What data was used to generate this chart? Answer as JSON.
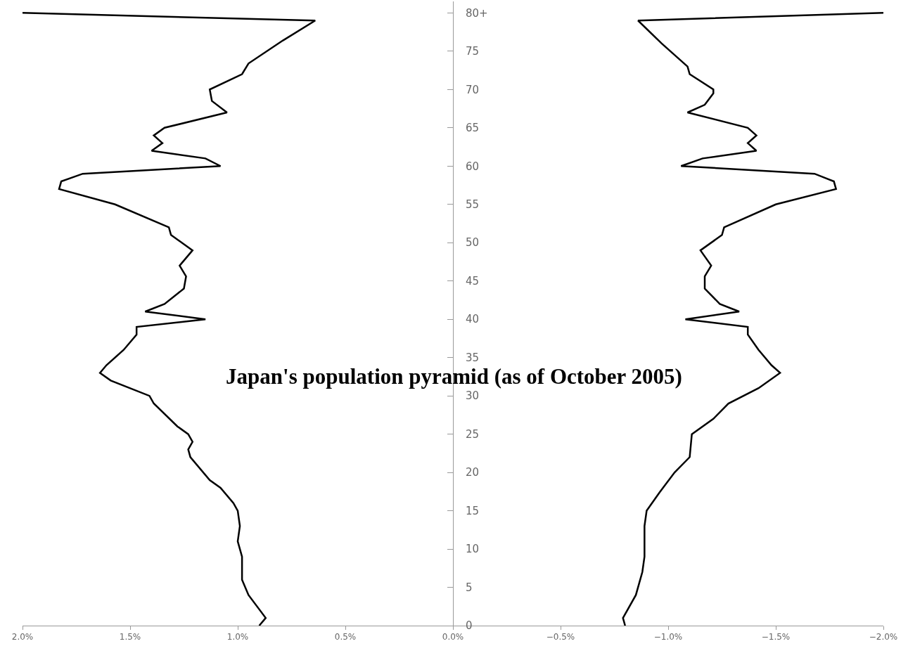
{
  "chart_data": {
    "type": "line",
    "orientation": "horizontal",
    "title": "Japan's population pyramid (as of October 2005)",
    "marker": "none",
    "series": [
      {
        "color": "#000000",
        "x": [
          0,
          1,
          4,
          6,
          9,
          11,
          13,
          15,
          16,
          18,
          19,
          22,
          23,
          24,
          25,
          26,
          29,
          30,
          32,
          33,
          34,
          36,
          38,
          39,
          40,
          41,
          42,
          44,
          45.6,
          47,
          49,
          51,
          52,
          55,
          57,
          58,
          59,
          60,
          61,
          62,
          63,
          64,
          65,
          67,
          68.5,
          70,
          72,
          73.4,
          76.4,
          79,
          80
        ],
        "values": [
          0.9,
          0.87,
          0.95,
          0.98,
          0.98,
          1.0,
          0.99,
          1.0,
          1.02,
          1.08,
          1.13,
          1.22,
          1.23,
          1.21,
          1.23,
          1.28,
          1.39,
          1.41,
          1.59,
          1.64,
          1.61,
          1.53,
          1.47,
          1.47,
          1.15,
          1.43,
          1.34,
          1.25,
          1.24,
          1.27,
          1.21,
          1.31,
          1.32,
          1.57,
          1.83,
          1.82,
          1.72,
          1.08,
          1.15,
          1.4,
          1.35,
          1.39,
          1.34,
          1.05,
          1.12,
          1.13,
          0.98,
          0.95,
          0.79,
          0.64,
          2.0
        ]
      },
      {
        "color": "#000000",
        "x": [
          0,
          1,
          4,
          7,
          9,
          13,
          15,
          17.4,
          20,
          22,
          25,
          27,
          29,
          31,
          33,
          34,
          36,
          38,
          39,
          40,
          41,
          42,
          44,
          45.6,
          47,
          49,
          51,
          52,
          55,
          57,
          58,
          59,
          60,
          61,
          62,
          63,
          64,
          65,
          67,
          68,
          69.5,
          70,
          72,
          73,
          76,
          79,
          80
        ],
        "values": [
          -0.8,
          -0.79,
          -0.85,
          -0.88,
          -0.89,
          -0.89,
          -0.9,
          -0.96,
          -1.03,
          -1.1,
          -1.11,
          -1.21,
          -1.28,
          -1.42,
          -1.52,
          -1.48,
          -1.42,
          -1.37,
          -1.37,
          -1.08,
          -1.33,
          -1.24,
          -1.17,
          -1.17,
          -1.2,
          -1.15,
          -1.25,
          -1.26,
          -1.5,
          -1.78,
          -1.77,
          -1.68,
          -1.06,
          -1.16,
          -1.41,
          -1.37,
          -1.41,
          -1.37,
          -1.09,
          -1.17,
          -1.21,
          -1.21,
          -1.1,
          -1.09,
          -0.97,
          -0.86,
          -2.0
        ]
      }
    ],
    "xlim": [
      2.0,
      -2.0
    ],
    "xticks": [
      {
        "value": 2.0,
        "label": "2.0%"
      },
      {
        "value": 1.5,
        "label": "1.5%"
      },
      {
        "value": 1.0,
        "label": "1.0%"
      },
      {
        "value": 0.5,
        "label": "0.5%"
      },
      {
        "value": 0,
        "label": "0.0%"
      },
      {
        "value": -0.5,
        "label": "−0.5%"
      },
      {
        "value": -1.0,
        "label": "−1.0%"
      },
      {
        "value": -1.5,
        "label": "−1.5%"
      },
      {
        "value": -2.0,
        "label": "−2.0%"
      }
    ],
    "ylim": [
      0,
      81.5
    ],
    "yticks": [
      0,
      5,
      10,
      15,
      20,
      25,
      30,
      35,
      40,
      45,
      50,
      55,
      60,
      65,
      70,
      75,
      {
        "value": 80,
        "label": "80+"
      }
    ]
  }
}
